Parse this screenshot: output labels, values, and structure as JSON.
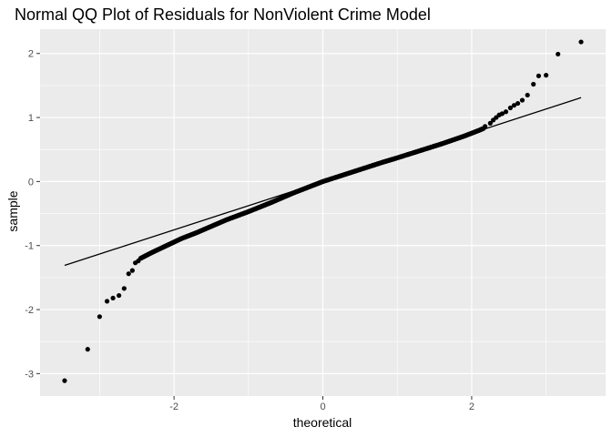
{
  "chart_data": {
    "type": "scatter",
    "title": "Normal QQ Plot of Residuals for NonViolent Crime Model",
    "xlabel": "theoretical",
    "ylabel": "sample",
    "xlim": [
      -3.8,
      3.8
    ],
    "ylim": [
      -3.35,
      2.38
    ],
    "x_ticks": [
      -2,
      0,
      2
    ],
    "x_tick_labels": [
      "-2",
      "0",
      "2"
    ],
    "y_ticks": [
      -3,
      -2,
      -1,
      0,
      1,
      2
    ],
    "y_tick_labels": [
      "-3",
      "-2",
      "-1",
      "0",
      "1",
      "2"
    ],
    "grid": true,
    "legend": "none",
    "reference_line": {
      "x": [
        -3.47,
        3.47
      ],
      "y": [
        -1.31,
        1.31
      ]
    },
    "tails": [
      [
        -3.47,
        -3.11
      ],
      [
        -3.16,
        -2.62
      ],
      [
        -3.0,
        -2.11
      ],
      [
        -2.9,
        -1.87
      ],
      [
        -2.82,
        -1.82
      ],
      [
        -2.74,
        -1.78
      ],
      [
        -2.67,
        -1.67
      ],
      [
        -2.61,
        -1.44
      ],
      [
        -2.56,
        -1.39
      ],
      [
        -2.52,
        -1.27
      ],
      [
        -2.48,
        -1.24
      ],
      [
        2.18,
        0.86
      ],
      [
        2.25,
        0.91
      ],
      [
        2.29,
        0.96
      ],
      [
        2.33,
        1.0
      ],
      [
        2.37,
        1.04
      ],
      [
        2.41,
        1.06
      ],
      [
        2.46,
        1.09
      ],
      [
        2.52,
        1.15
      ],
      [
        2.57,
        1.19
      ],
      [
        2.62,
        1.22
      ],
      [
        2.68,
        1.27
      ],
      [
        2.75,
        1.35
      ],
      [
        2.83,
        1.52
      ],
      [
        2.9,
        1.65
      ],
      [
        3.0,
        1.66
      ],
      [
        3.16,
        1.99
      ],
      [
        3.47,
        2.18
      ]
    ],
    "body_curve": [
      [
        -2.45,
        -1.2
      ],
      [
        -2.3,
        -1.11
      ],
      [
        -2.1,
        -1.0
      ],
      [
        -1.9,
        -0.89
      ],
      [
        -1.7,
        -0.8
      ],
      [
        -1.5,
        -0.7
      ],
      [
        -1.3,
        -0.6
      ],
      [
        -1.0,
        -0.47
      ],
      [
        -0.7,
        -0.33
      ],
      [
        -0.4,
        -0.18
      ],
      [
        0.0,
        0.0
      ],
      [
        0.4,
        0.15
      ],
      [
        0.8,
        0.3
      ],
      [
        1.0,
        0.37
      ],
      [
        1.3,
        0.48
      ],
      [
        1.6,
        0.59
      ],
      [
        1.9,
        0.71
      ],
      [
        2.1,
        0.8
      ],
      [
        2.16,
        0.83
      ]
    ],
    "body_point_count": 900,
    "point_color": "#000000",
    "line_color": "#000000",
    "panel_background": "#ebebeb",
    "grid_color": "#ffffff"
  }
}
